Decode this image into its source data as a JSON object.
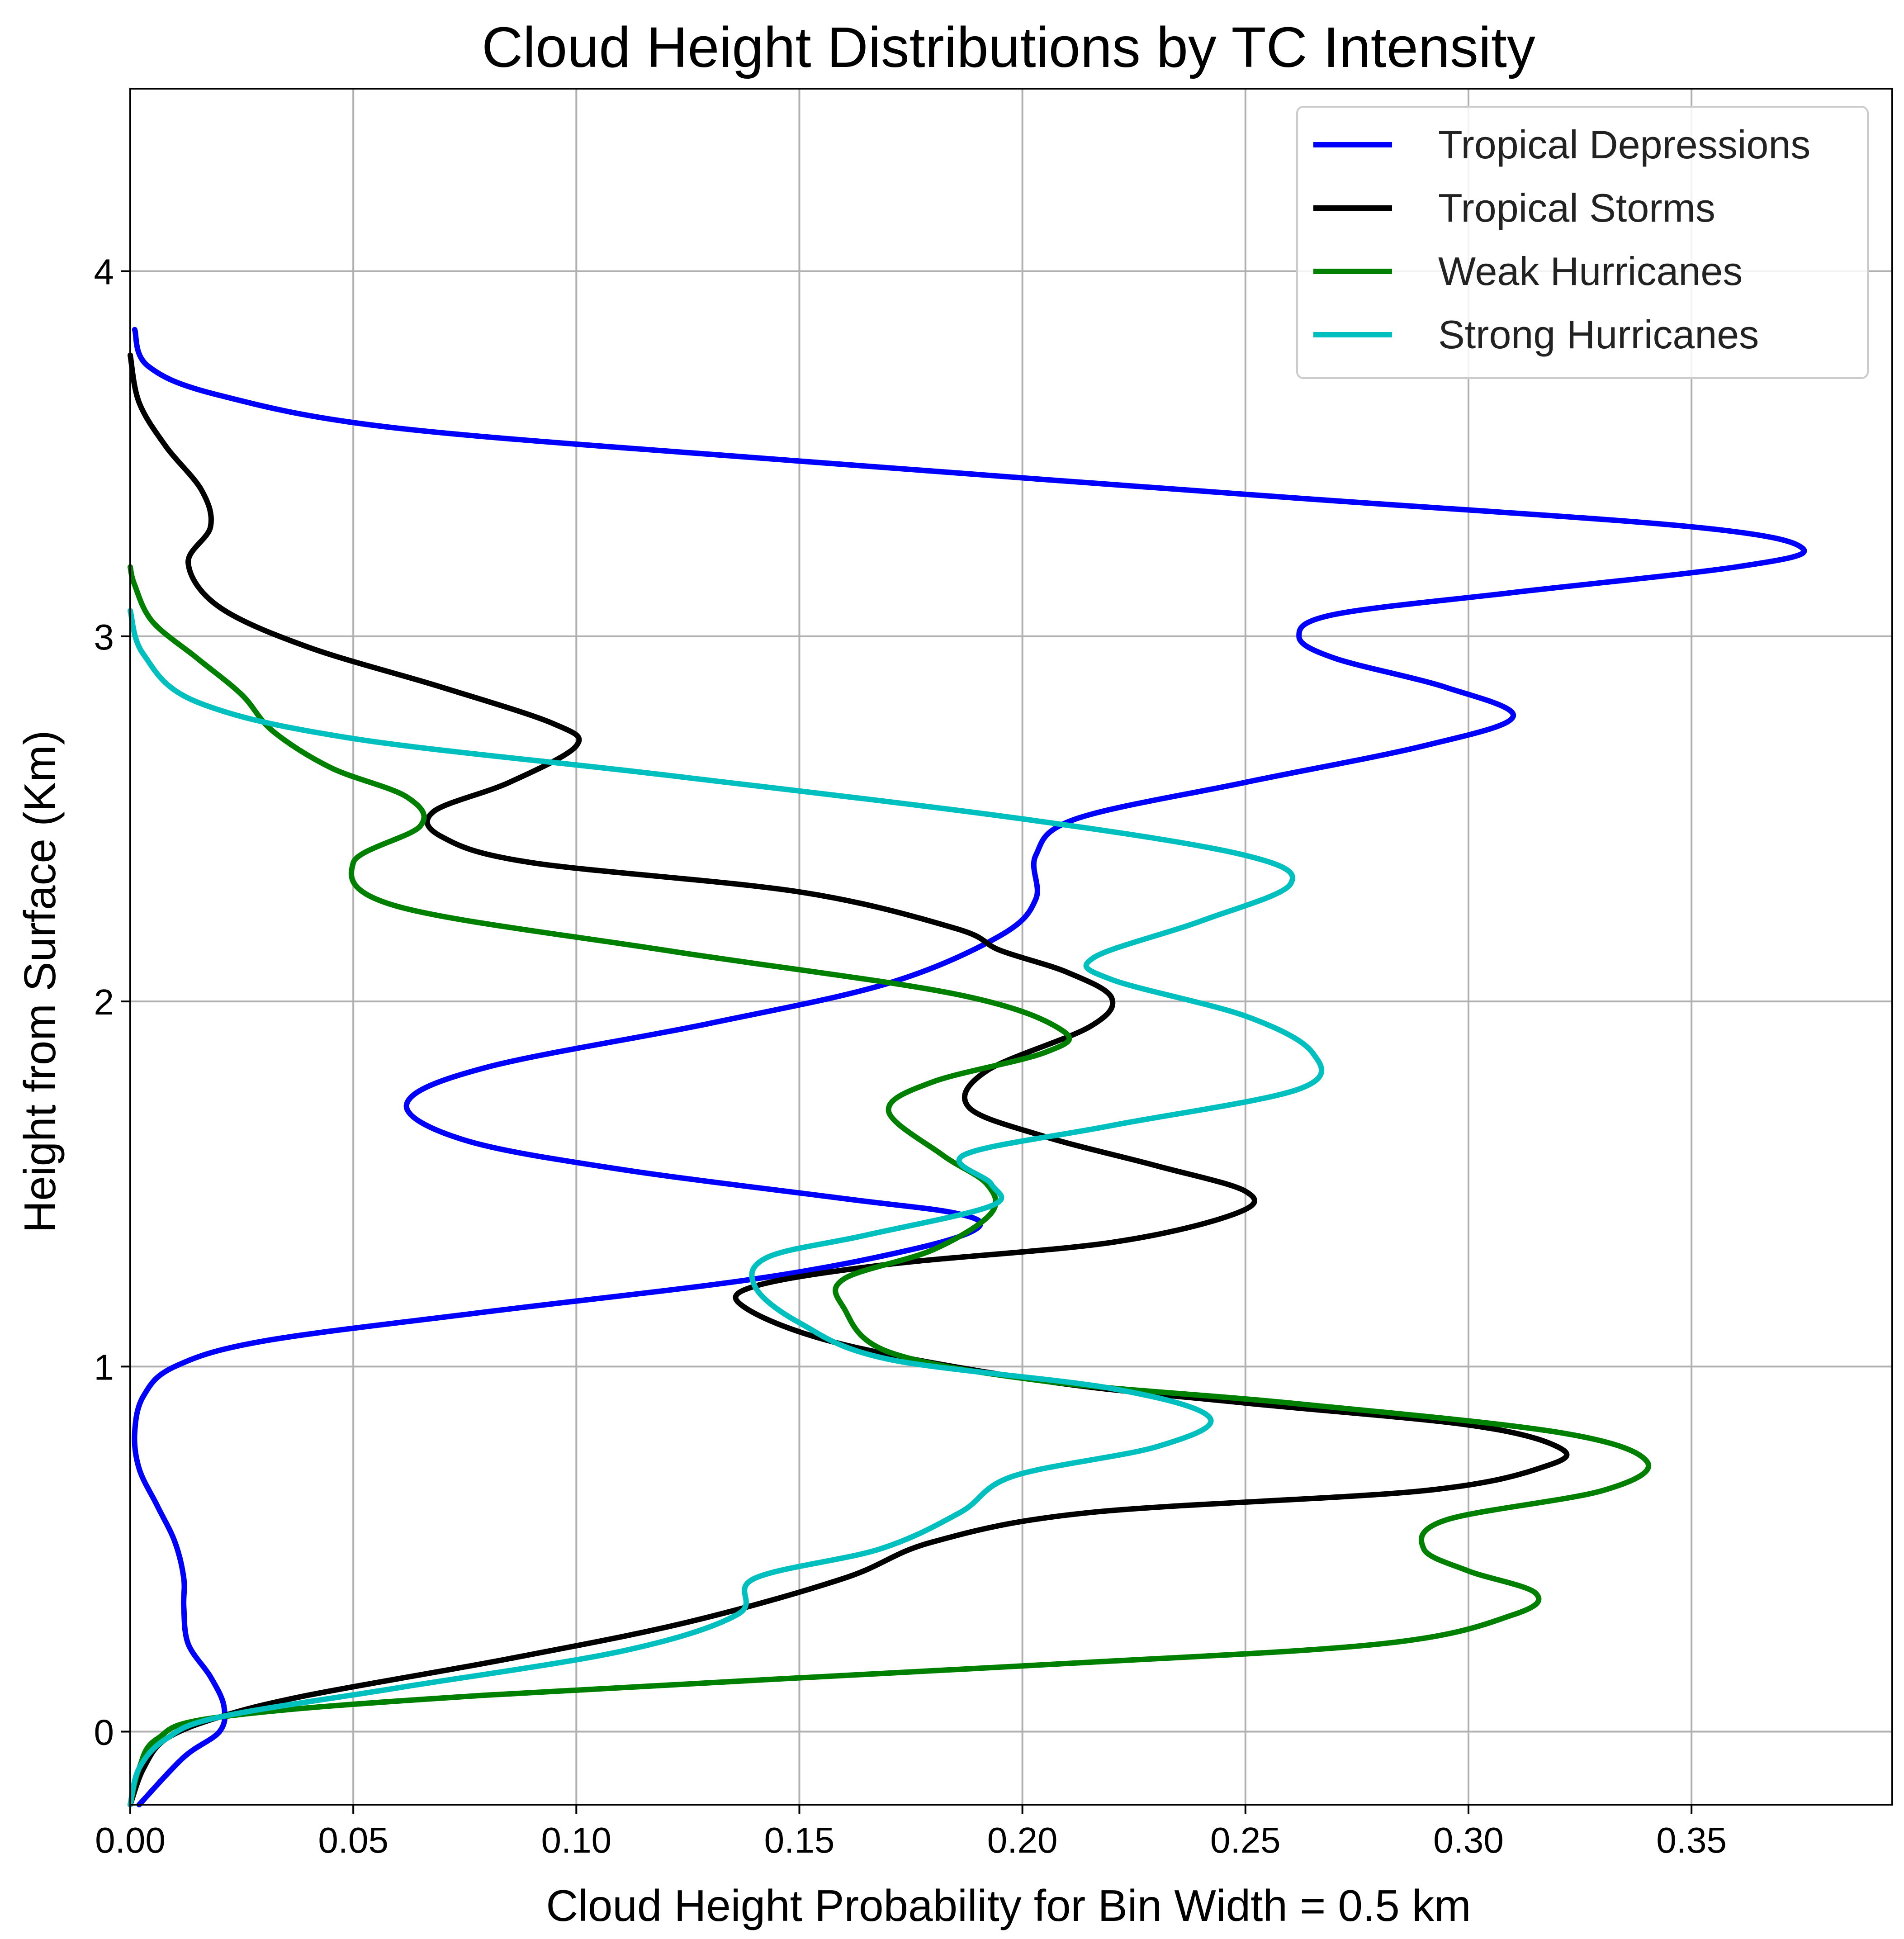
{
  "chart_data": {
    "type": "line",
    "title": "Cloud Height Distributions by TC Intensity",
    "xlabel": "Cloud Height Probability for Bin Width = 0.5 km",
    "ylabel": "Height from Surface (Km)",
    "xlim": [
      0,
      0.395
    ],
    "ylim": [
      -0.2,
      4.5
    ],
    "xticks": [
      0.0,
      0.05,
      0.1,
      0.15,
      0.2,
      0.25,
      0.3,
      0.35
    ],
    "xtick_labels": [
      "0.00",
      "0.05",
      "0.10",
      "0.15",
      "0.20",
      "0.25",
      "0.30",
      "0.35"
    ],
    "yticks": [
      0,
      1,
      2,
      3,
      4
    ],
    "ytick_labels": [
      "0",
      "1",
      "2",
      "3",
      "4"
    ],
    "grid": true,
    "legend_position": "top-right",
    "series": [
      {
        "name": "Tropical Depressions",
        "color": "#0000ff",
        "points": [
          [
            0.002,
            -0.2
          ],
          [
            0.012,
            -0.07
          ],
          [
            0.02,
            0.0
          ],
          [
            0.021,
            0.07
          ],
          [
            0.018,
            0.15
          ],
          [
            0.013,
            0.24
          ],
          [
            0.012,
            0.34
          ],
          [
            0.012,
            0.42
          ],
          [
            0.01,
            0.52
          ],
          [
            0.006,
            0.62
          ],
          [
            0.002,
            0.72
          ],
          [
            0.001,
            0.82
          ],
          [
            0.003,
            0.92
          ],
          [
            0.01,
            1.0
          ],
          [
            0.03,
            1.07
          ],
          [
            0.08,
            1.15
          ],
          [
            0.14,
            1.24
          ],
          [
            0.175,
            1.32
          ],
          [
            0.19,
            1.38
          ],
          [
            0.185,
            1.42
          ],
          [
            0.16,
            1.46
          ],
          [
            0.11,
            1.54
          ],
          [
            0.075,
            1.62
          ],
          [
            0.062,
            1.72
          ],
          [
            0.08,
            1.82
          ],
          [
            0.13,
            1.94
          ],
          [
            0.17,
            2.05
          ],
          [
            0.195,
            2.18
          ],
          [
            0.203,
            2.28
          ],
          [
            0.203,
            2.4
          ],
          [
            0.212,
            2.5
          ],
          [
            0.25,
            2.6
          ],
          [
            0.29,
            2.7
          ],
          [
            0.31,
            2.78
          ],
          [
            0.295,
            2.86
          ],
          [
            0.27,
            2.94
          ],
          [
            0.262,
            3.0
          ],
          [
            0.27,
            3.06
          ],
          [
            0.31,
            3.12
          ],
          [
            0.36,
            3.19
          ],
          [
            0.375,
            3.24
          ],
          [
            0.35,
            3.3
          ],
          [
            0.26,
            3.38
          ],
          [
            0.15,
            3.48
          ],
          [
            0.06,
            3.57
          ],
          [
            0.02,
            3.66
          ],
          [
            0.004,
            3.74
          ],
          [
            0.001,
            3.84
          ]
        ]
      },
      {
        "name": "Tropical Storms",
        "color": "#000000",
        "points": [
          [
            0.0,
            -0.2
          ],
          [
            0.003,
            -0.1
          ],
          [
            0.008,
            -0.02
          ],
          [
            0.02,
            0.04
          ],
          [
            0.04,
            0.1
          ],
          [
            0.085,
            0.2
          ],
          [
            0.125,
            0.3
          ],
          [
            0.16,
            0.42
          ],
          [
            0.18,
            0.52
          ],
          [
            0.215,
            0.6
          ],
          [
            0.29,
            0.66
          ],
          [
            0.318,
            0.73
          ],
          [
            0.32,
            0.78
          ],
          [
            0.3,
            0.84
          ],
          [
            0.25,
            0.9
          ],
          [
            0.205,
            0.96
          ],
          [
            0.16,
            1.06
          ],
          [
            0.138,
            1.16
          ],
          [
            0.14,
            1.22
          ],
          [
            0.17,
            1.28
          ],
          [
            0.22,
            1.34
          ],
          [
            0.248,
            1.42
          ],
          [
            0.25,
            1.48
          ],
          [
            0.23,
            1.55
          ],
          [
            0.205,
            1.63
          ],
          [
            0.188,
            1.71
          ],
          [
            0.192,
            1.81
          ],
          [
            0.215,
            1.93
          ],
          [
            0.22,
            2.01
          ],
          [
            0.21,
            2.08
          ],
          [
            0.195,
            2.14
          ],
          [
            0.185,
            2.2
          ],
          [
            0.15,
            2.3
          ],
          [
            0.09,
            2.38
          ],
          [
            0.07,
            2.45
          ],
          [
            0.068,
            2.52
          ],
          [
            0.085,
            2.6
          ],
          [
            0.1,
            2.7
          ],
          [
            0.095,
            2.76
          ],
          [
            0.07,
            2.86
          ],
          [
            0.04,
            2.97
          ],
          [
            0.02,
            3.08
          ],
          [
            0.013,
            3.2
          ],
          [
            0.018,
            3.3
          ],
          [
            0.016,
            3.4
          ],
          [
            0.008,
            3.52
          ],
          [
            0.002,
            3.64
          ],
          [
            0.0,
            3.77
          ]
        ]
      },
      {
        "name": "Weak Hurricanes",
        "color": "#008000",
        "points": [
          [
            0.0,
            -0.2
          ],
          [
            0.002,
            -0.1
          ],
          [
            0.006,
            -0.02
          ],
          [
            0.02,
            0.04
          ],
          [
            0.08,
            0.1
          ],
          [
            0.2,
            0.18
          ],
          [
            0.28,
            0.24
          ],
          [
            0.31,
            0.32
          ],
          [
            0.315,
            0.38
          ],
          [
            0.3,
            0.44
          ],
          [
            0.29,
            0.5
          ],
          [
            0.295,
            0.58
          ],
          [
            0.33,
            0.66
          ],
          [
            0.34,
            0.74
          ],
          [
            0.32,
            0.82
          ],
          [
            0.26,
            0.9
          ],
          [
            0.205,
            0.96
          ],
          [
            0.17,
            1.04
          ],
          [
            0.16,
            1.16
          ],
          [
            0.16,
            1.24
          ],
          [
            0.18,
            1.32
          ],
          [
            0.193,
            1.42
          ],
          [
            0.192,
            1.5
          ],
          [
            0.182,
            1.58
          ],
          [
            0.17,
            1.7
          ],
          [
            0.18,
            1.78
          ],
          [
            0.205,
            1.86
          ],
          [
            0.209,
            1.92
          ],
          [
            0.185,
            2.02
          ],
          [
            0.12,
            2.14
          ],
          [
            0.06,
            2.26
          ],
          [
            0.05,
            2.38
          ],
          [
            0.065,
            2.48
          ],
          [
            0.062,
            2.56
          ],
          [
            0.045,
            2.64
          ],
          [
            0.032,
            2.74
          ],
          [
            0.025,
            2.84
          ],
          [
            0.015,
            2.94
          ],
          [
            0.005,
            3.04
          ],
          [
            0.001,
            3.14
          ],
          [
            0.0,
            3.19
          ]
        ]
      },
      {
        "name": "Strong Hurricanes",
        "color": "#00bfbf",
        "points": [
          [
            0.0,
            -0.2
          ],
          [
            0.002,
            -0.1
          ],
          [
            0.008,
            -0.02
          ],
          [
            0.02,
            0.04
          ],
          [
            0.06,
            0.12
          ],
          [
            0.11,
            0.22
          ],
          [
            0.136,
            0.32
          ],
          [
            0.14,
            0.42
          ],
          [
            0.168,
            0.5
          ],
          [
            0.186,
            0.6
          ],
          [
            0.198,
            0.7
          ],
          [
            0.23,
            0.78
          ],
          [
            0.242,
            0.86
          ],
          [
            0.22,
            0.94
          ],
          [
            0.17,
            1.02
          ],
          [
            0.15,
            1.12
          ],
          [
            0.14,
            1.22
          ],
          [
            0.143,
            1.3
          ],
          [
            0.165,
            1.36
          ],
          [
            0.193,
            1.44
          ],
          [
            0.193,
            1.5
          ],
          [
            0.187,
            1.58
          ],
          [
            0.22,
            1.66
          ],
          [
            0.262,
            1.76
          ],
          [
            0.265,
            1.86
          ],
          [
            0.25,
            1.96
          ],
          [
            0.22,
            2.06
          ],
          [
            0.216,
            2.12
          ],
          [
            0.24,
            2.22
          ],
          [
            0.26,
            2.32
          ],
          [
            0.25,
            2.4
          ],
          [
            0.2,
            2.5
          ],
          [
            0.12,
            2.62
          ],
          [
            0.05,
            2.72
          ],
          [
            0.015,
            2.82
          ],
          [
            0.003,
            2.95
          ],
          [
            0.0,
            3.07
          ]
        ]
      }
    ]
  }
}
